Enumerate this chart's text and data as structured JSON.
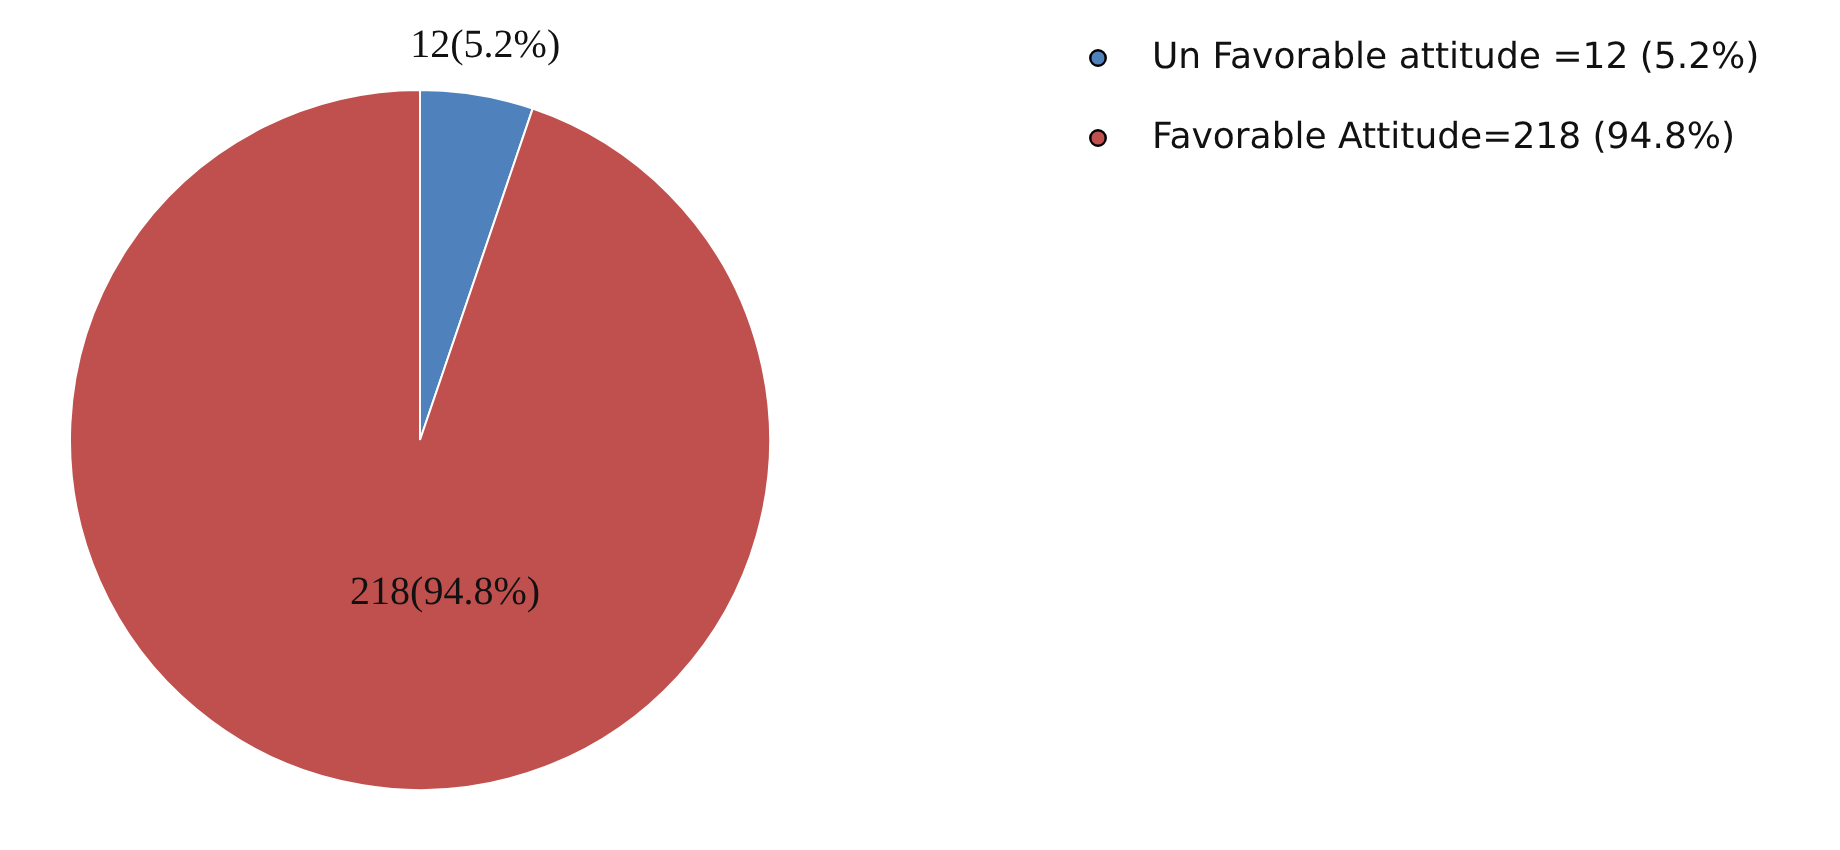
{
  "chart_data": {
    "type": "pie",
    "categories": [
      "Un Favorable attitude =12 (5.2%)",
      "Favorable Attitude=218 (94.8%)"
    ],
    "values": [
      12,
      218
    ],
    "colors": [
      "#4f81bd",
      "#c0504d"
    ],
    "value_labels": [
      "12(5.2%)",
      "218(94.8%)"
    ],
    "legend": "right"
  }
}
